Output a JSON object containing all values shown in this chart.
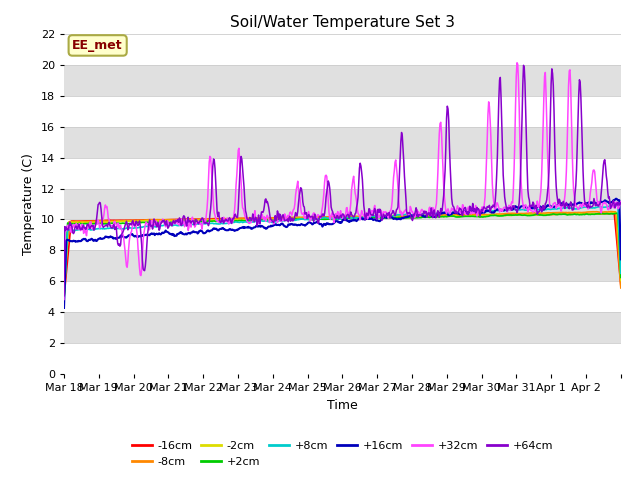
{
  "title": "Soil/Water Temperature Set 3",
  "xlabel": "Time",
  "ylabel": "Temperature (C)",
  "ylim": [
    0,
    22
  ],
  "yticks": [
    0,
    2,
    4,
    6,
    8,
    10,
    12,
    14,
    16,
    18,
    20,
    22
  ],
  "fig_bg_color": "#ffffff",
  "plot_bg_color": "#e8e8e8",
  "band_white": "#ffffff",
  "band_gray": "#e0e0e0",
  "annotation_text": "EE_met",
  "annotation_bg": "#ffffcc",
  "annotation_border": "#aaaa44",
  "annotation_text_color": "#880000",
  "series_colors": {
    "-16cm": "#ff0000",
    "-8cm": "#ff8800",
    "-2cm": "#dddd00",
    "+2cm": "#00cc00",
    "+8cm": "#00cccc",
    "+16cm": "#0000bb",
    "+32cm": "#ff44ff",
    "+64cm": "#8800cc"
  },
  "x_tick_labels": [
    "Mar 18",
    "Mar 19",
    "Mar 20",
    "Mar 21",
    "Mar 22",
    "Mar 23",
    "Mar 24",
    "Mar 25",
    "Mar 26",
    "Mar 27",
    "Mar 28",
    "Mar 29",
    "Mar 30",
    "Mar 31",
    "Apr 1",
    "Apr 2"
  ]
}
